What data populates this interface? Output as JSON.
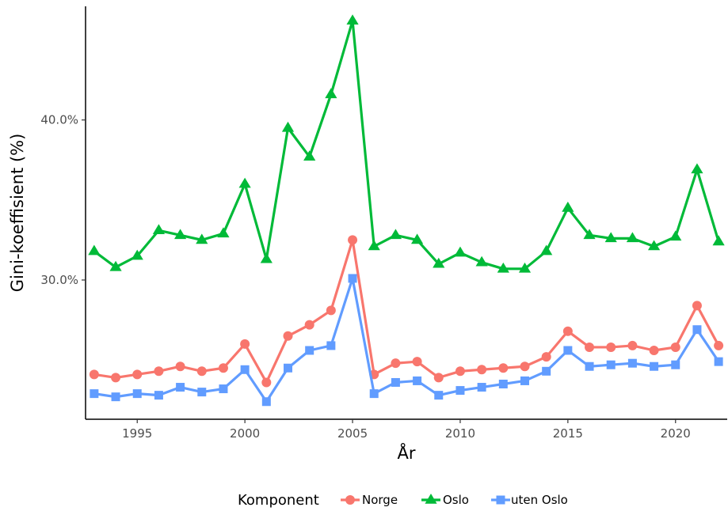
{
  "chart_data": {
    "type": "line",
    "title": "",
    "xlabel": "År",
    "ylabel": "Gini-koeffisient (%)",
    "x": [
      1993,
      1994,
      1995,
      1996,
      1997,
      1998,
      1999,
      2000,
      2001,
      2002,
      2003,
      2004,
      2005,
      2006,
      2007,
      2008,
      2009,
      2010,
      2011,
      2012,
      2013,
      2014,
      2015,
      2016,
      2017,
      2018,
      2019,
      2020,
      2021,
      2022
    ],
    "x_ticks": [
      1995,
      2000,
      2005,
      2010,
      2015,
      2020
    ],
    "x_tick_labels": [
      "1995",
      "2000",
      "2005",
      "2010",
      "2015",
      "2020"
    ],
    "y_ticks": [
      30,
      40
    ],
    "y_tick_labels": [
      "30.0%",
      "40.0%"
    ],
    "xlim": [
      1992.6,
      2022.4
    ],
    "ylim": [
      21.3,
      47.1
    ],
    "grid": false,
    "legend_position": "bottom",
    "legend_title": "Komponent",
    "series": [
      {
        "name": "Norge",
        "color": "#F8766D",
        "marker": "circle",
        "values": [
          24.1,
          23.9,
          24.1,
          24.3,
          24.6,
          24.3,
          24.5,
          26.0,
          23.6,
          26.5,
          27.2,
          28.1,
          32.5,
          24.1,
          24.8,
          24.9,
          23.9,
          24.3,
          24.4,
          24.5,
          24.6,
          25.2,
          26.8,
          25.8,
          25.8,
          25.9,
          25.6,
          25.8,
          28.4,
          25.9
        ]
      },
      {
        "name": "Oslo",
        "color": "#00BA38",
        "marker": "triangle",
        "values": [
          31.8,
          30.8,
          31.5,
          33.1,
          32.8,
          32.5,
          32.9,
          36.0,
          31.3,
          39.5,
          37.7,
          41.6,
          46.2,
          32.1,
          32.8,
          32.5,
          31.0,
          31.7,
          31.1,
          30.7,
          30.7,
          31.8,
          34.5,
          32.8,
          32.6,
          32.6,
          32.1,
          32.7,
          36.9,
          32.4
        ]
      },
      {
        "name": "uten Oslo",
        "color": "#619CFF",
        "marker": "square",
        "values": [
          22.9,
          22.7,
          22.9,
          22.8,
          23.3,
          23.0,
          23.2,
          24.4,
          22.4,
          24.5,
          25.6,
          25.9,
          30.1,
          22.9,
          23.6,
          23.7,
          22.8,
          23.1,
          23.3,
          23.5,
          23.7,
          24.3,
          25.6,
          24.6,
          24.7,
          24.8,
          24.6,
          24.7,
          26.9,
          24.9
        ]
      }
    ]
  }
}
